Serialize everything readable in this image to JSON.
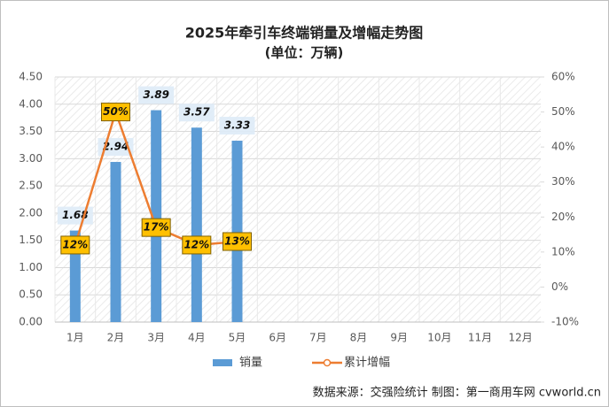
{
  "chart_data": {
    "type": "bar",
    "title": "2025年牵引车终端销量及增幅走势图",
    "subtitle": "(单位：万辆)",
    "source": "数据来源：交强险统计   制图：第一商用车网 cvworld.cn",
    "categories": [
      "1月",
      "2月",
      "3月",
      "4月",
      "5月",
      "6月",
      "7月",
      "8月",
      "9月",
      "10月",
      "11月",
      "12月"
    ],
    "series": [
      {
        "name": "销量",
        "type": "bar",
        "color": "#5b9bd5",
        "values": [
          1.68,
          2.94,
          3.89,
          3.57,
          3.33,
          null,
          null,
          null,
          null,
          null,
          null,
          null
        ]
      },
      {
        "name": "累计增幅",
        "type": "line",
        "axis": "y2",
        "color": "#ed7d31",
        "values": [
          12,
          50,
          17,
          12,
          13,
          null,
          null,
          null,
          null,
          null,
          null,
          null
        ],
        "value_labels": [
          "12%",
          "50%",
          "17%",
          "12%",
          "13%",
          null,
          null,
          null,
          null,
          null,
          null,
          null
        ]
      }
    ],
    "ylim": [
      0,
      4.5
    ],
    "yticks": [
      {
        "value": 0,
        "label": "0.00"
      },
      {
        "value": 0.5,
        "label": "0.50"
      },
      {
        "value": 1,
        "label": "1.00"
      },
      {
        "value": 1.5,
        "label": "1.50"
      },
      {
        "value": 2,
        "label": "2.00"
      },
      {
        "value": 2.5,
        "label": "2.50"
      },
      {
        "value": 3,
        "label": "3.00"
      },
      {
        "value": 3.5,
        "label": "3.50"
      },
      {
        "value": 4,
        "label": "4.00"
      },
      {
        "value": 4.5,
        "label": "4.50"
      }
    ],
    "y2lim": [
      -10,
      60
    ],
    "y2ticks": [
      {
        "value": -10,
        "label": "-10%"
      },
      {
        "value": 0,
        "label": "0%"
      },
      {
        "value": 10,
        "label": "10%"
      },
      {
        "value": 20,
        "label": "20%"
      },
      {
        "value": 30,
        "label": "30%"
      },
      {
        "value": 40,
        "label": "40%"
      },
      {
        "value": 50,
        "label": "50%"
      },
      {
        "value": 60,
        "label": "60%"
      }
    ],
    "grid": true,
    "legend": "bottom"
  }
}
